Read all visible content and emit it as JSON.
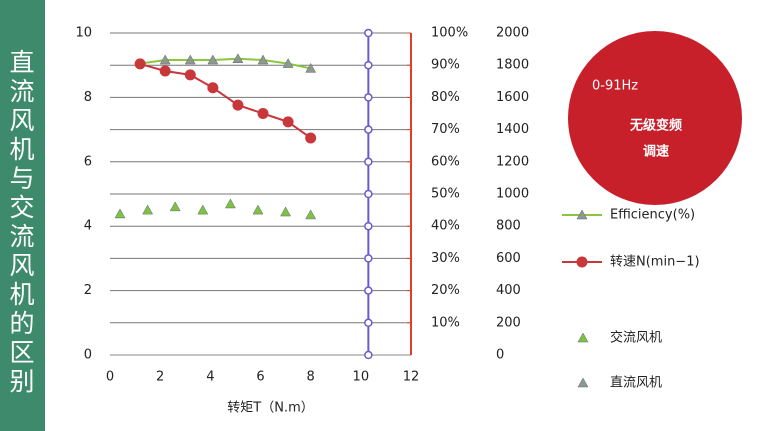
{
  "sidebar_title": "直流风机与交流风机的区别",
  "badge": {
    "headline": "0-91Hz",
    "line1": "无级变频",
    "line2": "调速",
    "color": "#c8202a"
  },
  "chart_data": {
    "type": "line",
    "x_label": "转矩T（N.m）",
    "xlim": [
      0,
      12
    ],
    "xticks": [
      0,
      2,
      4,
      6,
      8,
      10,
      12
    ],
    "ylim": [
      0,
      10
    ],
    "yticks": [
      0,
      2,
      4,
      6,
      8,
      10
    ],
    "y2lim": [
      0,
      100
    ],
    "y2ticks": [
      {
        "value": 10,
        "label": "10%"
      },
      {
        "value": 20,
        "label": "20%"
      },
      {
        "value": 30,
        "label": "30%"
      },
      {
        "value": 40,
        "label": "40%"
      },
      {
        "value": 50,
        "label": "50%"
      },
      {
        "value": 60,
        "label": "60%"
      },
      {
        "value": 70,
        "label": "70%"
      },
      {
        "value": 80,
        "label": "80%"
      },
      {
        "value": 90,
        "label": "90%"
      },
      {
        "value": 100,
        "label": "100%"
      }
    ],
    "y3lim": [
      0,
      2000
    ],
    "y3ticks": [
      0,
      200,
      400,
      600,
      800,
      1000,
      1200,
      1400,
      1600,
      1800,
      2000
    ],
    "y2_axis_color": "#e0402a",
    "grid": true,
    "vline": {
      "x": 10.3,
      "color": "#6a5acd"
    },
    "series": [
      {
        "name": "Efficiency(%)",
        "color": "#8cc63f",
        "axis": "y2",
        "kind": "line",
        "marker": "triangle",
        "marker_color": "#8c9a8c",
        "x": [
          1.2,
          2.2,
          3.2,
          4.1,
          5.1,
          6.1,
          7.1,
          8.0
        ],
        "values": [
          90.5,
          91.6,
          91.6,
          91.6,
          92,
          91.6,
          90.5,
          89
        ]
      },
      {
        "name": "转速N(min−1)",
        "color": "#c8373a",
        "axis": "y3",
        "kind": "line",
        "marker": "circle",
        "x": [
          1.2,
          2.2,
          3.2,
          4.1,
          5.1,
          6.1,
          7.1,
          8.0
        ],
        "values": [
          1808,
          1764,
          1740,
          1660,
          1552,
          1500,
          1448,
          1348
        ]
      },
      {
        "name": "交流风机",
        "color": "#7dc242",
        "axis": "y2",
        "kind": "markers",
        "marker": "triangle",
        "x": [
          0.4,
          1.5,
          2.6,
          3.7,
          4.8,
          5.9,
          7.0,
          8.0
        ],
        "values": [
          43.8,
          45,
          46,
          45,
          46.9,
          45,
          44.4,
          43.5
        ]
      },
      {
        "name": "直流风机",
        "color": "#8c9a8c",
        "axis": "y2",
        "kind": "markers",
        "marker": "triangle",
        "x": [
          2.2,
          3.2,
          4.1,
          5.1,
          6.1,
          7.1,
          8.0
        ],
        "values": [
          91.6,
          91.6,
          91.6,
          92,
          91.6,
          90.5,
          89
        ]
      }
    ]
  }
}
